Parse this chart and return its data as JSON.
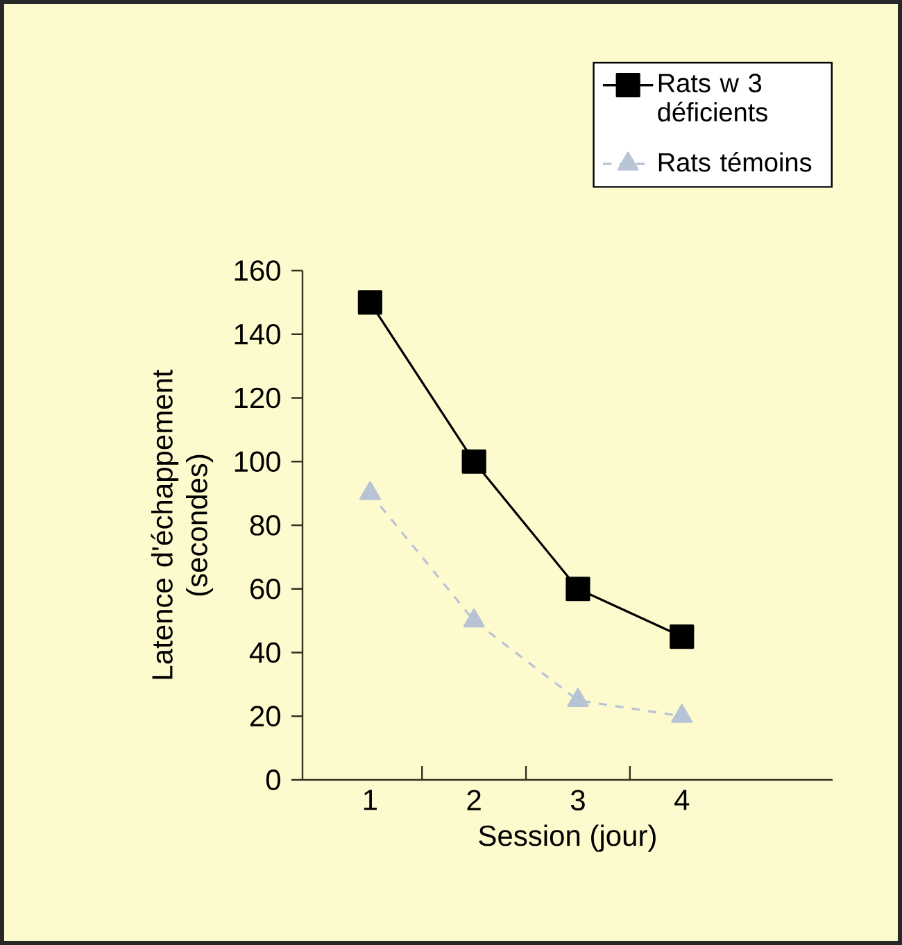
{
  "chart_data": {
    "type": "line",
    "xlabel": "Session (jour)",
    "ylabel": "Latence d'échappement (secondes)",
    "categories": [
      "1",
      "2",
      "3",
      "4"
    ],
    "ylim": [
      0,
      160
    ],
    "yticks": [
      0,
      20,
      40,
      60,
      80,
      100,
      120,
      140,
      160
    ],
    "legend": "top right",
    "grid": false,
    "series": [
      {
        "name": "Rats w 3 déficients",
        "color": "#000000",
        "values": [
          150,
          100,
          60,
          45
        ],
        "marker": "square",
        "line_style": "solid"
      },
      {
        "name": "Rats témoins",
        "color": "#b8c4d6",
        "values": [
          90,
          50,
          25,
          20
        ],
        "marker": "triangle",
        "line_style": "dashed"
      }
    ]
  }
}
